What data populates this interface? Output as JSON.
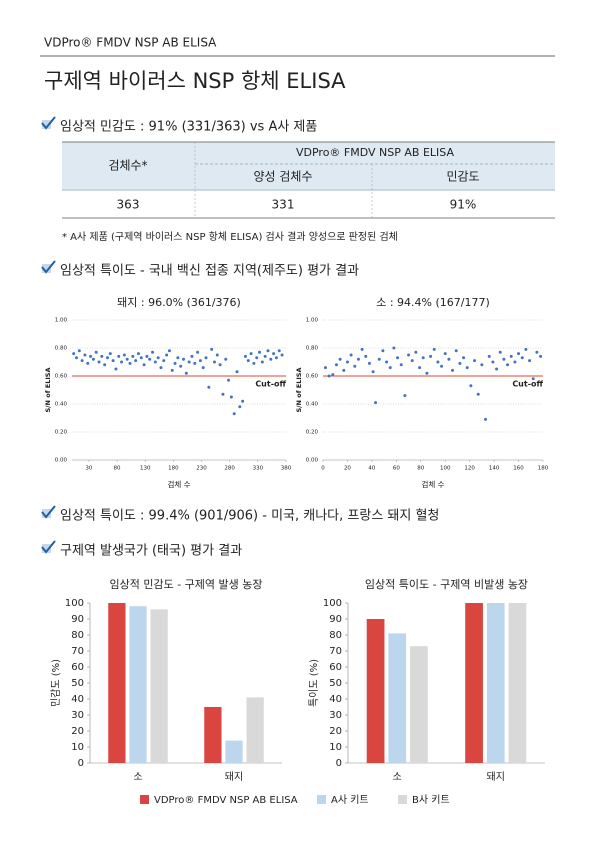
{
  "header": "VDPro® FMDV NSP AB ELISA",
  "title": "구제역 바이러스 NSP 항체 ELISA",
  "sections": [
    "임상적 민감도 : 91% (331/363) vs A사 제품",
    "임상적 특이도 - 국내 백신 접종 지역(제주도) 평가 결과",
    "임상적 특이도 : 99.4% (901/906) - 미국, 캐나다, 프랑스 돼지 혈청",
    "구제역 발생국가 (태국) 평가 결과"
  ],
  "table": {
    "header": [
      "검체수*",
      "VDPro® FMDV NSP AB ELISA",
      "양성 검체수",
      "민감도"
    ],
    "rows": [
      [
        363,
        331,
        "91%"
      ]
    ]
  },
  "footnote": "* A사 제품 (구제역 바이러스 NSP 항체 ELISA) 검사 결과 양성으로 판정된 검체",
  "chart_data": [
    {
      "type": "scatter",
      "title": "돼지 : 96.0% (361/376)",
      "x_label": "검체 수",
      "y_label": "S/N of ELISA",
      "color": "#4472c4",
      "x": [
        3,
        8,
        13,
        18,
        23,
        28,
        33,
        38,
        43,
        48,
        53,
        58,
        63,
        68,
        73,
        78,
        83,
        88,
        93,
        98,
        103,
        108,
        113,
        118,
        123,
        128,
        133,
        138,
        143,
        148,
        153,
        158,
        163,
        168,
        173,
        178,
        183,
        188,
        193,
        198,
        203,
        208,
        213,
        218,
        223,
        228,
        233,
        238,
        243,
        248,
        253,
        258,
        263,
        268,
        273,
        278,
        283,
        288,
        293,
        298,
        303,
        308,
        313,
        318,
        323,
        328,
        333,
        338,
        343,
        348,
        353,
        358,
        363,
        368,
        373
      ],
      "values": [
        0.76,
        0.73,
        0.78,
        0.71,
        0.75,
        0.69,
        0.74,
        0.72,
        0.77,
        0.7,
        0.74,
        0.68,
        0.73,
        0.76,
        0.71,
        0.65,
        0.74,
        0.7,
        0.75,
        0.72,
        0.69,
        0.74,
        0.71,
        0.76,
        0.73,
        0.68,
        0.74,
        0.72,
        0.77,
        0.7,
        0.73,
        0.66,
        0.71,
        0.75,
        0.78,
        0.64,
        0.69,
        0.73,
        0.67,
        0.72,
        0.62,
        0.7,
        0.74,
        0.69,
        0.77,
        0.71,
        0.66,
        0.73,
        0.52,
        0.79,
        0.7,
        0.75,
        0.68,
        0.47,
        0.72,
        0.57,
        0.45,
        0.33,
        0.63,
        0.38,
        0.42,
        0.74,
        0.71,
        0.76,
        0.69,
        0.73,
        0.77,
        0.7,
        0.74,
        0.78,
        0.72,
        0.76,
        0.73,
        0.78,
        0.75
      ],
      "xlim": [
        0,
        380
      ],
      "xticks": [
        30,
        80,
        130,
        180,
        230,
        280,
        330,
        380
      ],
      "ylim": [
        0,
        1
      ],
      "yticks": [
        {
          "value": 0,
          "label": "0.00"
        },
        {
          "value": 0.2,
          "label": "0.20"
        },
        {
          "value": 0.4,
          "label": "0.40"
        },
        {
          "value": 0.6,
          "label": "0.60"
        },
        {
          "value": 0.8,
          "label": "0.80"
        },
        {
          "value": 1,
          "label": "1.00"
        }
      ],
      "grid": true,
      "cutoff": {
        "value": 0.6,
        "label": "Cut-off",
        "color": "#e0452c"
      }
    },
    {
      "type": "scatter",
      "title": "소 : 94.4% (167/177)",
      "x_label": "검체 수",
      "y_label": "S/N of ELISA",
      "color": "#4472c4",
      "x": [
        2,
        5,
        8,
        11,
        14,
        17,
        20,
        23,
        26,
        29,
        32,
        35,
        38,
        41,
        43,
        46,
        49,
        52,
        55,
        58,
        61,
        64,
        67,
        70,
        73,
        76,
        79,
        82,
        85,
        88,
        91,
        94,
        97,
        100,
        103,
        106,
        109,
        112,
        115,
        118,
        121,
        124,
        127,
        130,
        133,
        136,
        139,
        142,
        145,
        148,
        151,
        154,
        157,
        160,
        163,
        166,
        169,
        172,
        175,
        178
      ],
      "values": [
        0.66,
        0.6,
        0.61,
        0.68,
        0.72,
        0.64,
        0.7,
        0.75,
        0.67,
        0.72,
        0.79,
        0.74,
        0.69,
        0.63,
        0.41,
        0.72,
        0.78,
        0.7,
        0.66,
        0.8,
        0.73,
        0.68,
        0.46,
        0.75,
        0.71,
        0.77,
        0.66,
        0.73,
        0.62,
        0.74,
        0.79,
        0.7,
        0.67,
        0.76,
        0.72,
        0.64,
        0.78,
        0.69,
        0.73,
        0.66,
        0.53,
        0.71,
        0.47,
        0.68,
        0.29,
        0.74,
        0.7,
        0.65,
        0.77,
        0.72,
        0.68,
        0.74,
        0.7,
        0.76,
        0.73,
        0.79,
        0.71,
        0.58,
        0.77,
        0.74
      ],
      "xlim": [
        0,
        180
      ],
      "xticks": [
        0,
        20,
        40,
        60,
        80,
        100,
        120,
        140,
        160,
        180
      ],
      "ylim": [
        0,
        1
      ],
      "yticks": [
        {
          "value": 0,
          "label": "0.00"
        },
        {
          "value": 0.2,
          "label": "0.20"
        },
        {
          "value": 0.4,
          "label": "0.40"
        },
        {
          "value": 0.6,
          "label": "0.60"
        },
        {
          "value": 0.8,
          "label": "0.80"
        },
        {
          "value": 1,
          "label": "1.00"
        }
      ],
      "grid": true,
      "cutoff": {
        "value": 0.6,
        "label": "Cut-off",
        "color": "#e0452c"
      }
    },
    {
      "type": "bar",
      "title": "임상적 민감도 - 구제역 발생 농장",
      "y_label": "민감도 (%)",
      "categories": [
        "소",
        "돼지"
      ],
      "series": [
        {
          "name": "VDPro® FMDV NSP AB ELISA",
          "color": "#d9463f",
          "values": [
            100,
            35
          ]
        },
        {
          "name": "A사 키트",
          "color": "#bcd6ee",
          "values": [
            98,
            14
          ]
        },
        {
          "name": "B사 키트",
          "color": "#d9d9d9",
          "values": [
            96,
            41
          ]
        }
      ],
      "ylim": [
        0,
        100
      ],
      "yticks": [
        0,
        10,
        20,
        30,
        40,
        50,
        60,
        70,
        80,
        90,
        100
      ]
    },
    {
      "type": "bar",
      "title": "임상적 특이도 - 구제역 비발생 농장",
      "y_label": "특이도 (%)",
      "categories": [
        "소",
        "돼지"
      ],
      "series": [
        {
          "color": "#d9463f",
          "values": [
            90,
            100
          ]
        },
        {
          "color": "#bcd6ee",
          "values": [
            81,
            100
          ]
        },
        {
          "color": "#d9d9d9",
          "values": [
            73,
            100
          ]
        }
      ],
      "ylim": [
        0,
        100
      ],
      "yticks": [
        0,
        10,
        20,
        30,
        40,
        50,
        60,
        70,
        80,
        90,
        100
      ]
    }
  ]
}
